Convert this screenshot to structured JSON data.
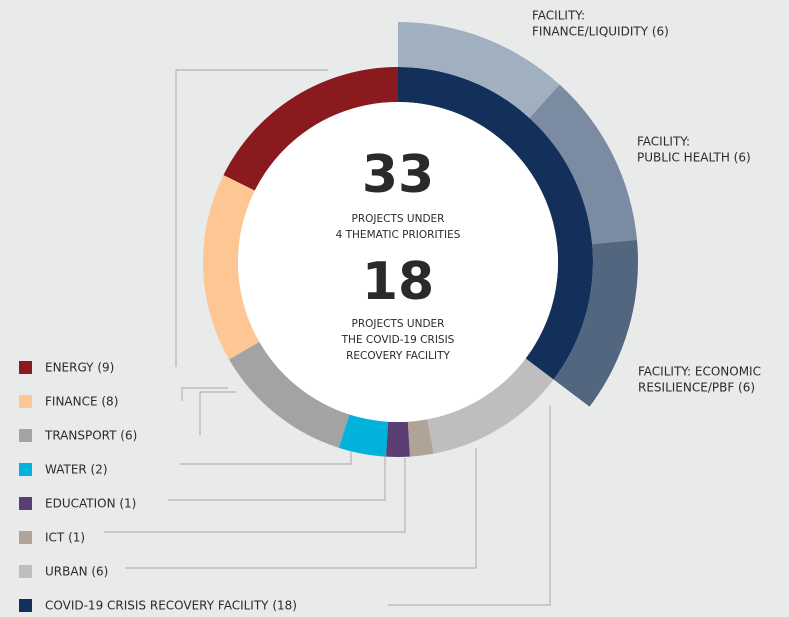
{
  "chart_data": {
    "type": "donut",
    "center_top_value": "33",
    "center_top_lines": [
      "PROJECTS UNDER",
      "4 THEMATIC PRIORITIES"
    ],
    "center_bottom_value": "18",
    "center_bottom_lines": [
      "PROJECTS UNDER",
      "THE COVID-19 CRISIS",
      "RECOVERY FACILITY"
    ],
    "series": [
      {
        "name": "ring",
        "labels": [
          "ENERGY (9)",
          "FINANCE (8)",
          "TRANSPORT (6)",
          "WATER (2)",
          "EDUCATION (1)",
          "ICT (1)",
          "URBAN (6)",
          "COVID-19 CRISIS RECOVERY FACILITY (18)"
        ],
        "values": [
          9,
          8,
          6,
          2,
          1,
          1,
          6,
          18
        ],
        "colors": [
          "#8b1a1f",
          "#fdc692",
          "#a3a3a3",
          "#00b2dc",
          "#5b3f74",
          "#b0a397",
          "#bebebe",
          "#12305a"
        ]
      },
      {
        "name": "facility",
        "labels": [
          [
            "FACILITY:",
            "FINANCE/LIQUIDITY (6)"
          ],
          [
            "FACILITY:",
            "PUBLIC HEALTH (6)"
          ],
          [
            "FACILITY: ECONOMIC",
            "RESILIENCE/PBF (6)"
          ]
        ],
        "values": [
          6,
          6,
          6
        ],
        "colors": [
          "#a1b0c0",
          "#7b8ba1",
          "#536680"
        ]
      }
    ]
  }
}
